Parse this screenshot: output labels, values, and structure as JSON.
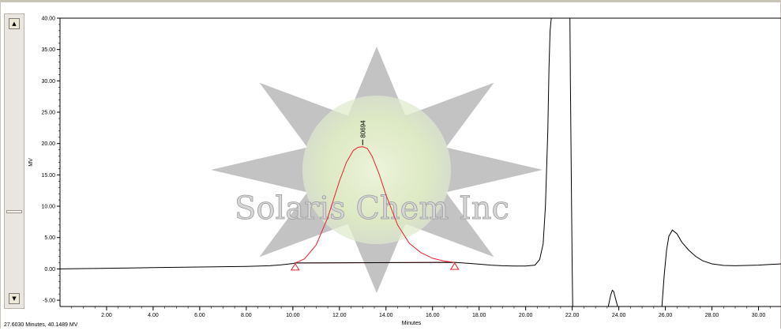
{
  "status_text": "27.6030 Minutes, 40.1489 MV",
  "watermark": {
    "text": "Solaris Chem Inc"
  },
  "scroll": {
    "up_icon": "▲",
    "down_icon": "▼"
  },
  "colors": {
    "trace": "#000000",
    "peak": "#e8232d",
    "watermark_star": "#b8b8b8",
    "watermark_glow": "#e4f0c8"
  },
  "chart_data": {
    "type": "line",
    "xlabel": "Minutes",
    "ylabel": "MV",
    "xlim": [
      0.0,
      31.0
    ],
    "ylim": [
      -6.0,
      40.0
    ],
    "xticks": [
      "2.00",
      "4.00",
      "6.00",
      "8.00",
      "10.00",
      "12.00",
      "14.00",
      "16.00",
      "18.00",
      "20.00",
      "22.00",
      "24.00",
      "26.00",
      "28.00",
      "30.00"
    ],
    "yticks": [
      "-5.00",
      "0.00",
      "5.00",
      "10.00",
      "15.00",
      "20.00",
      "25.00",
      "30.00",
      "35.00",
      "40.00"
    ],
    "grid": false,
    "series": [
      {
        "color": "#000000",
        "x": [
          0.0,
          1.0,
          2.0,
          3.0,
          4.0,
          5.0,
          6.0,
          7.0,
          8.0,
          9.0,
          9.5,
          10.0,
          10.1,
          16.95,
          17.5,
          18.0,
          18.5,
          19.0,
          19.5,
          20.0,
          20.4,
          20.6,
          20.75,
          20.85,
          20.95,
          21.0,
          21.05,
          21.1
        ],
        "y": [
          0.0,
          0.05,
          0.1,
          0.15,
          0.2,
          0.25,
          0.3,
          0.35,
          0.4,
          0.5,
          0.65,
          0.85,
          0.95,
          1.05,
          0.9,
          0.75,
          0.6,
          0.5,
          0.45,
          0.45,
          0.6,
          1.5,
          4.0,
          10.0,
          22.0,
          32.0,
          38.0,
          40.0
        ]
      },
      {
        "color": "#000000",
        "x": [
          21.9,
          21.92,
          21.97,
          22.0,
          22.02
        ],
        "y": [
          40.0,
          30.0,
          10.0,
          0.0,
          -6.0
        ]
      },
      {
        "color": "#000000",
        "x": [
          23.55,
          23.65,
          23.72,
          23.78,
          23.85,
          23.95
        ],
        "y": [
          -6.0,
          -4.2,
          -3.4,
          -3.6,
          -4.6,
          -6.0
        ]
      },
      {
        "color": "#000000",
        "x": [
          25.85,
          25.95,
          26.05,
          26.15,
          26.3,
          26.5,
          26.7,
          27.0,
          27.3,
          27.6,
          28.0,
          28.5,
          29.0,
          29.5,
          30.0,
          30.5,
          31.0
        ],
        "y": [
          -6.0,
          -1.0,
          3.0,
          5.2,
          6.2,
          5.6,
          4.3,
          3.0,
          2.0,
          1.3,
          0.8,
          0.55,
          0.5,
          0.55,
          0.6,
          0.7,
          0.8
        ]
      },
      {
        "name": "80694",
        "color": "#e8232d",
        "x": [
          10.1,
          10.5,
          11.0,
          11.5,
          12.0,
          12.3,
          12.6,
          12.8,
          13.0,
          13.2,
          13.4,
          13.7,
          14.0,
          14.5,
          15.0,
          15.5,
          16.0,
          16.5,
          16.95
        ],
        "y": [
          0.95,
          1.6,
          3.8,
          8.2,
          14.0,
          17.0,
          18.9,
          19.4,
          19.5,
          19.2,
          18.0,
          15.2,
          11.8,
          7.0,
          4.1,
          2.6,
          1.7,
          1.25,
          1.05
        ]
      }
    ],
    "baseline": {
      "x": [
        10.1,
        16.95
      ],
      "y": [
        0.95,
        1.05
      ]
    },
    "peak_markers": [
      {
        "x": 10.1,
        "y": 0.95
      },
      {
        "x": 16.95,
        "y": 1.05
      }
    ],
    "annotations": [
      {
        "text": "80694",
        "x": 13.0,
        "y": 19.5
      }
    ]
  }
}
